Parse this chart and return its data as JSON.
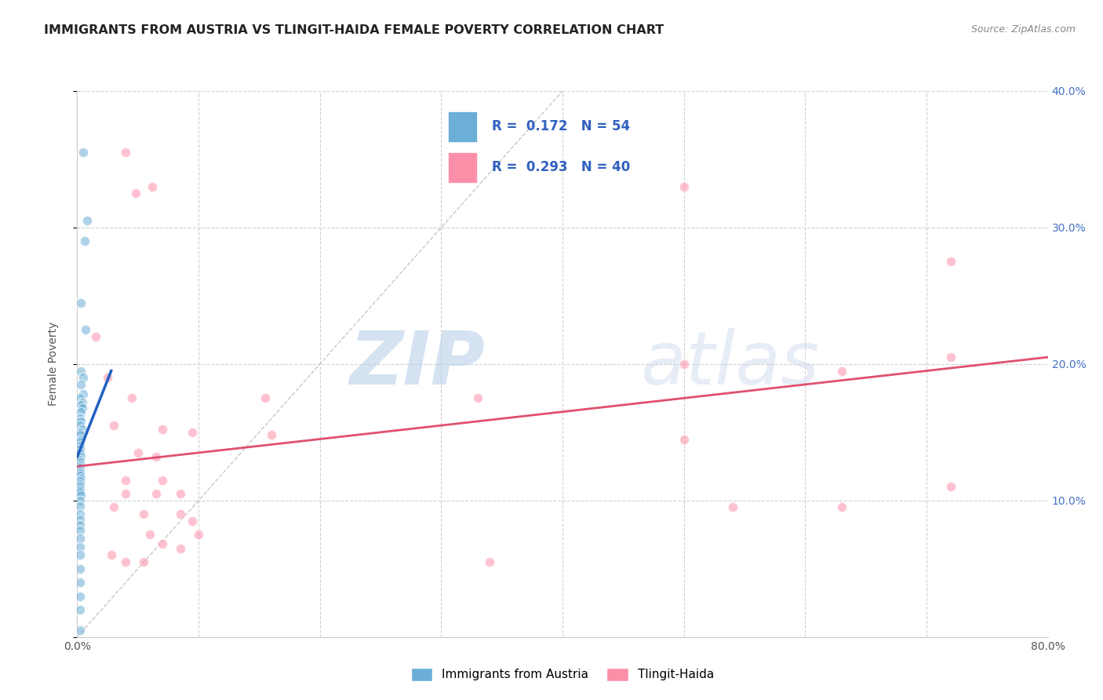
{
  "title": "IMMIGRANTS FROM AUSTRIA VS TLINGIT-HAIDA FEMALE POVERTY CORRELATION CHART",
  "source": "Source: ZipAtlas.com",
  "ylabel": "Female Poverty",
  "x_min": 0.0,
  "x_max": 0.8,
  "y_min": 0.0,
  "y_max": 0.4,
  "legend_label_blue": "Immigrants from Austria",
  "legend_label_pink": "Tlingit-Haida",
  "blue_color": "#6baed6",
  "pink_color": "#fc8fa8",
  "blue_scatter": [
    [
      0.005,
      0.355
    ],
    [
      0.008,
      0.305
    ],
    [
      0.006,
      0.29
    ],
    [
      0.003,
      0.245
    ],
    [
      0.007,
      0.225
    ],
    [
      0.003,
      0.195
    ],
    [
      0.005,
      0.19
    ],
    [
      0.003,
      0.185
    ],
    [
      0.005,
      0.178
    ],
    [
      0.002,
      0.175
    ],
    [
      0.004,
      0.172
    ],
    [
      0.003,
      0.17
    ],
    [
      0.004,
      0.168
    ],
    [
      0.003,
      0.165
    ],
    [
      0.002,
      0.16
    ],
    [
      0.003,
      0.158
    ],
    [
      0.002,
      0.155
    ],
    [
      0.004,
      0.152
    ],
    [
      0.002,
      0.15
    ],
    [
      0.002,
      0.148
    ],
    [
      0.003,
      0.145
    ],
    [
      0.002,
      0.143
    ],
    [
      0.002,
      0.14
    ],
    [
      0.002,
      0.138
    ],
    [
      0.002,
      0.135
    ],
    [
      0.003,
      0.132
    ],
    [
      0.002,
      0.13
    ],
    [
      0.002,
      0.128
    ],
    [
      0.002,
      0.126
    ],
    [
      0.002,
      0.124
    ],
    [
      0.002,
      0.122
    ],
    [
      0.002,
      0.12
    ],
    [
      0.002,
      0.118
    ],
    [
      0.003,
      0.116
    ],
    [
      0.002,
      0.114
    ],
    [
      0.002,
      0.112
    ],
    [
      0.002,
      0.11
    ],
    [
      0.002,
      0.108
    ],
    [
      0.002,
      0.106
    ],
    [
      0.003,
      0.104
    ],
    [
      0.002,
      0.1
    ],
    [
      0.002,
      0.096
    ],
    [
      0.002,
      0.09
    ],
    [
      0.002,
      0.086
    ],
    [
      0.002,
      0.082
    ],
    [
      0.002,
      0.078
    ],
    [
      0.002,
      0.072
    ],
    [
      0.002,
      0.066
    ],
    [
      0.002,
      0.06
    ],
    [
      0.002,
      0.05
    ],
    [
      0.002,
      0.04
    ],
    [
      0.002,
      0.03
    ],
    [
      0.002,
      0.02
    ],
    [
      0.002,
      0.005
    ]
  ],
  "pink_scatter": [
    [
      0.04,
      0.355
    ],
    [
      0.048,
      0.325
    ],
    [
      0.062,
      0.33
    ],
    [
      0.5,
      0.33
    ],
    [
      0.72,
      0.275
    ],
    [
      0.015,
      0.22
    ],
    [
      0.72,
      0.205
    ],
    [
      0.5,
      0.2
    ],
    [
      0.63,
      0.195
    ],
    [
      0.025,
      0.19
    ],
    [
      0.045,
      0.175
    ],
    [
      0.155,
      0.175
    ],
    [
      0.33,
      0.175
    ],
    [
      0.03,
      0.155
    ],
    [
      0.07,
      0.152
    ],
    [
      0.095,
      0.15
    ],
    [
      0.16,
      0.148
    ],
    [
      0.5,
      0.145
    ],
    [
      0.05,
      0.135
    ],
    [
      0.065,
      0.132
    ],
    [
      0.04,
      0.115
    ],
    [
      0.07,
      0.115
    ],
    [
      0.04,
      0.105
    ],
    [
      0.065,
      0.105
    ],
    [
      0.085,
      0.105
    ],
    [
      0.03,
      0.095
    ],
    [
      0.055,
      0.09
    ],
    [
      0.085,
      0.09
    ],
    [
      0.095,
      0.085
    ],
    [
      0.06,
      0.075
    ],
    [
      0.1,
      0.075
    ],
    [
      0.07,
      0.068
    ],
    [
      0.085,
      0.065
    ],
    [
      0.04,
      0.055
    ],
    [
      0.34,
      0.055
    ],
    [
      0.54,
      0.095
    ],
    [
      0.72,
      0.11
    ],
    [
      0.63,
      0.095
    ],
    [
      0.028,
      0.06
    ],
    [
      0.055,
      0.055
    ]
  ],
  "blue_line_x": [
    0.0,
    0.028
  ],
  "blue_line_y": [
    0.132,
    0.195
  ],
  "pink_line_x": [
    0.0,
    0.8
  ],
  "pink_line_y": [
    0.125,
    0.205
  ],
  "diagonal_line_x": [
    0.0,
    0.4
  ],
  "diagonal_line_y": [
    0.0,
    0.4
  ],
  "watermark_zip": "ZIP",
  "watermark_atlas": "atlas",
  "background_color": "#ffffff",
  "grid_color": "#d0d0d0",
  "title_fontsize": 11.5,
  "axis_fontsize": 10,
  "tick_color": "#4472C4",
  "scatter_size": 80,
  "scatter_alpha": 0.55,
  "scatter_linewidth": 1.2
}
